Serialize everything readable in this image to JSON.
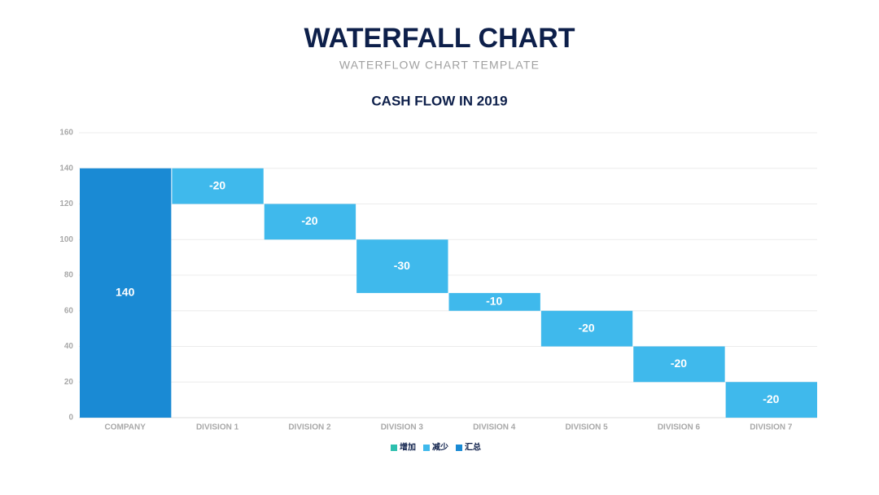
{
  "title": "WATERFALL CHART",
  "subtitle": "WATERFLOW CHART TEMPLATE",
  "chart_data": {
    "type": "waterfall",
    "title": "CASH FLOW IN 2019",
    "categories": [
      "COMPANY",
      "DIVISION 1",
      "DIVISION 2",
      "DIVISION 3",
      "DIVISION 4",
      "DIVISION 5",
      "DIVISION 6",
      "DIVISION 7"
    ],
    "values": [
      140,
      -20,
      -20,
      -30,
      -10,
      -20,
      -20,
      -20
    ],
    "series": [
      {
        "name": "增加",
        "color": "#2dbfae"
      },
      {
        "name": "减少",
        "color": "#3fb9ec"
      },
      {
        "name": "汇总",
        "color": "#1a8ad4"
      }
    ],
    "ylim": [
      0,
      160
    ],
    "yticks": [
      0,
      20,
      40,
      60,
      80,
      100,
      120,
      140,
      160
    ],
    "grid": true,
    "legend": "bottom"
  }
}
